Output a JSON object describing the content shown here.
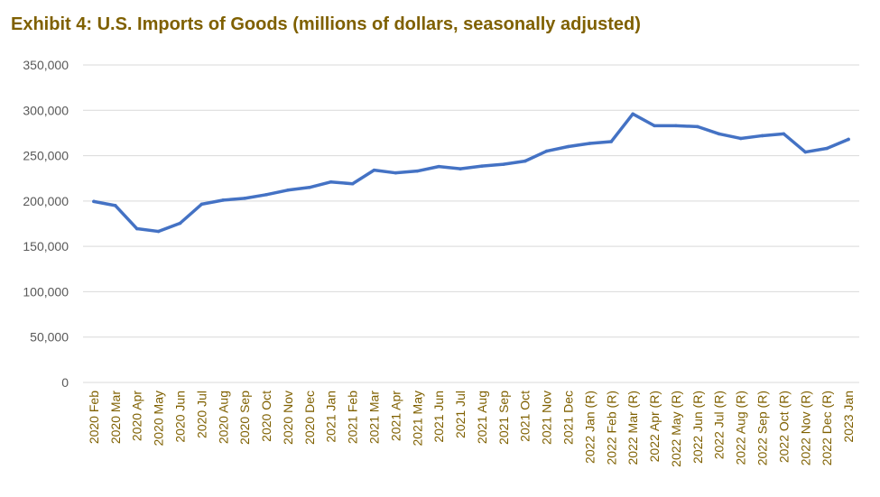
{
  "chart_data": {
    "type": "line",
    "title": "Exhibit 4: U.S. Imports of Goods (millions of dollars, seasonally adjusted)",
    "categories": [
      "2020 Feb",
      "2020 Mar",
      "2020 Apr",
      "2020 May",
      "2020 Jun",
      "2020 Jul",
      "2020 Aug",
      "2020 Sep",
      "2020 Oct",
      "2020 Nov",
      "2020 Dec",
      "2021 Jan",
      "2021 Feb",
      "2021 Mar",
      "2021 Apr",
      "2021 May",
      "2021 Jun",
      "2021 Jul",
      "2021 Aug",
      "2021 Sep",
      "2021 Oct",
      "2021 Nov",
      "2021 Dec",
      "2022 Jan (R)",
      "2022 Feb (R)",
      "2022 Mar (R)",
      "2022 Apr (R)",
      "2022 May (R)",
      "2022 Jun (R)",
      "2022 Jul (R)",
      "2022 Aug (R)",
      "2022 Sep (R)",
      "2022 Oct (R)",
      "2022 Nov (R)",
      "2022 Dec (R)",
      "2023 Jan"
    ],
    "series": [
      {
        "values": [
          199500,
          195000,
          169500,
          166500,
          175500,
          196500,
          201000,
          203000,
          207000,
          212000,
          215000,
          221000,
          219000,
          234000,
          231000,
          233000,
          238000,
          235500,
          238500,
          240500,
          244000,
          255000,
          260000,
          263500,
          265500,
          296000,
          283000,
          283000,
          282000,
          274000,
          269000,
          272000,
          274000,
          254000,
          258000,
          268000
        ],
        "color": "#4472C4"
      }
    ],
    "yticks": [
      "350,000",
      "300,000",
      "250,000",
      "200,000",
      "150,000",
      "100,000",
      "50,000",
      "0"
    ],
    "ylim": [
      0,
      350000
    ],
    "grid": true,
    "legend": "none"
  }
}
